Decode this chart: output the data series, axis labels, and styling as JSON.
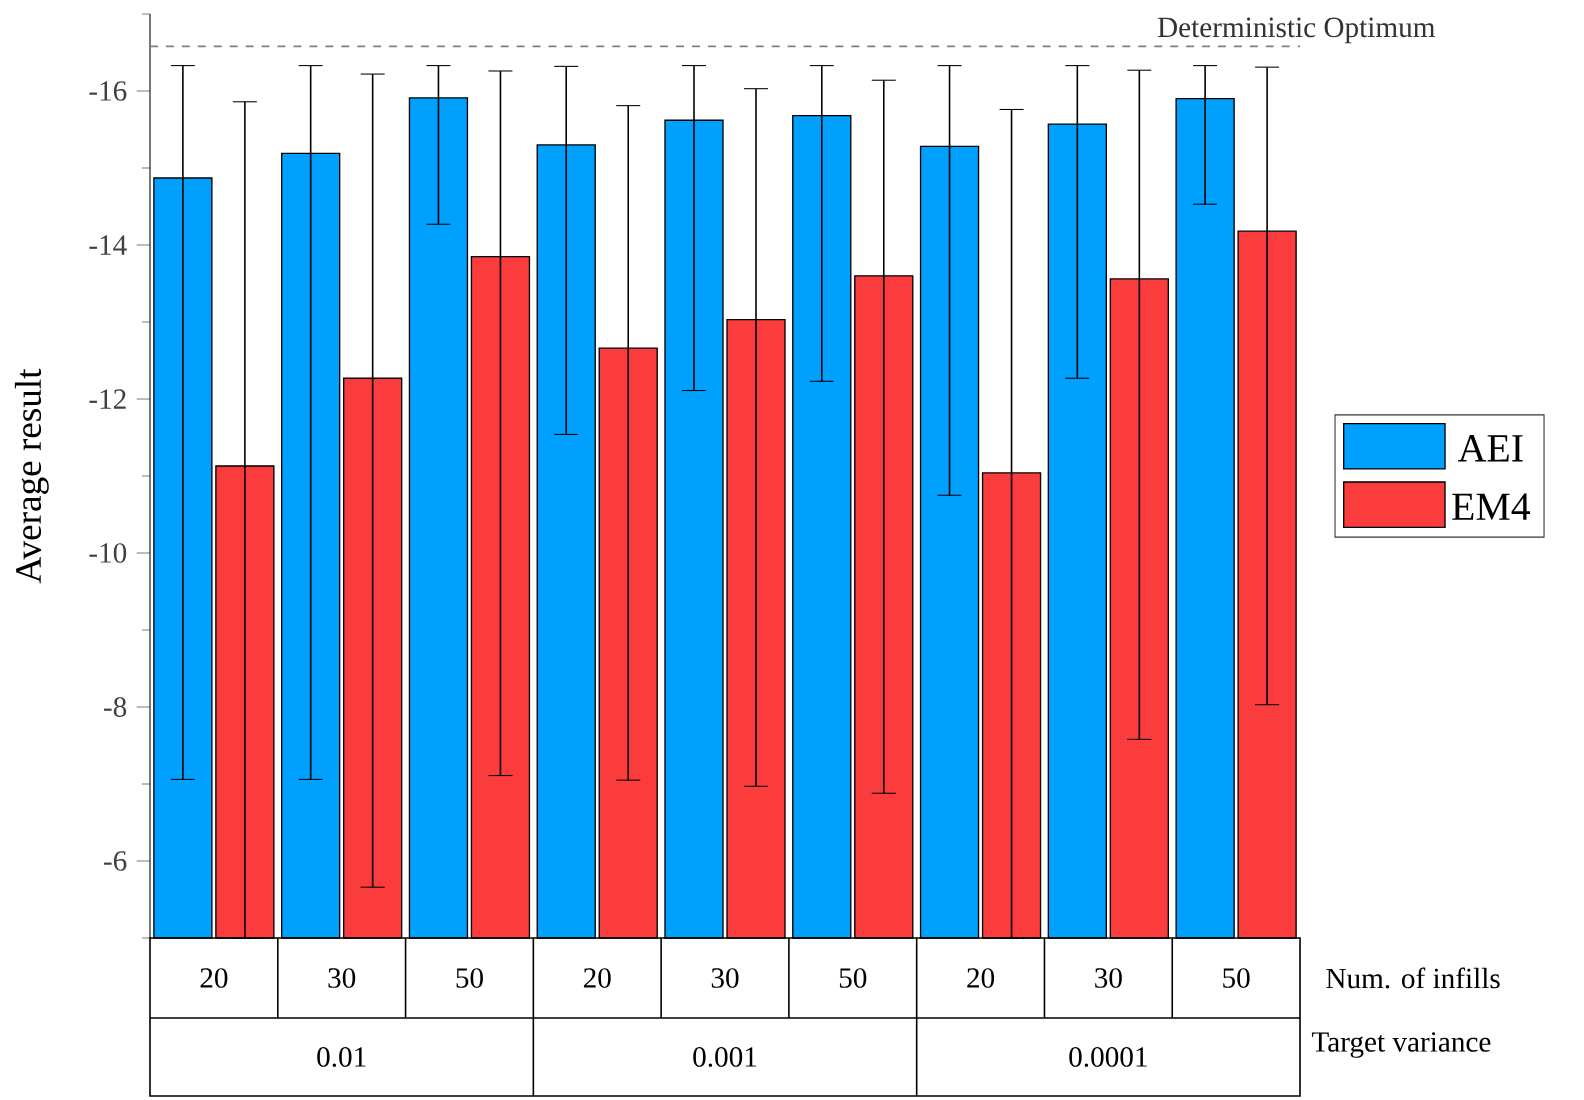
{
  "chart_data": {
    "type": "bar",
    "categories": [
      "20",
      "30",
      "50",
      "20",
      "30",
      "50",
      "20",
      "30",
      "50"
    ],
    "ylabel": "Average result",
    "ylim": [
      -5,
      -17
    ],
    "yticks": [
      {
        "value": -5,
        "label": null
      },
      -6,
      {
        "value": -7,
        "label": null
      },
      -8,
      {
        "value": -9,
        "label": null
      },
      -10,
      {
        "value": -11,
        "label": null
      },
      -12,
      {
        "value": -13,
        "label": null
      },
      -14,
      {
        "value": -15,
        "label": null
      },
      -16,
      {
        "value": -17,
        "label": null
      }
    ],
    "series": [
      {
        "name": "AEI",
        "color": "#00a0ff",
        "values": [
          -14.87,
          -15.19,
          -15.91,
          -15.3,
          -15.62,
          -15.68,
          -15.28,
          -15.57,
          -15.9
        ],
        "errors": [
          [
            -16.33,
            -7.06
          ],
          [
            -16.33,
            -7.06
          ],
          [
            -16.33,
            -14.27
          ],
          [
            -16.32,
            -11.54
          ],
          [
            -16.33,
            -12.11
          ],
          [
            -16.33,
            -12.23
          ],
          [
            -16.33,
            -10.75
          ],
          [
            -16.33,
            -12.27
          ],
          [
            -16.33,
            -14.53
          ]
        ]
      },
      {
        "name": "EM4",
        "color": "#fa3c3c",
        "values": [
          -11.13,
          -12.27,
          -13.85,
          -12.66,
          -13.03,
          -13.6,
          -11.04,
          -13.56,
          -14.18
        ],
        "errors": [
          [
            -15.86,
            -5
          ],
          [
            -16.22,
            -5.66
          ],
          [
            -16.26,
            -7.11
          ],
          [
            -15.81,
            -7.05
          ],
          [
            -16.03,
            -6.97
          ],
          [
            -16.14,
            -6.88
          ],
          [
            -15.76,
            -5
          ],
          [
            -16.27,
            -7.58
          ],
          [
            -16.31,
            -8.03
          ]
        ]
      }
    ],
    "ref_lines": [
      {
        "axis": "y",
        "value": -16.58,
        "label": "Deterministic Optimum",
        "color": "#808080",
        "line_style": "dashed"
      }
    ],
    "annotations": [
      "Num. of infills",
      "0.01",
      "0.001",
      "0.0001",
      "Target variance"
    ],
    "legend": "right",
    "grid": false
  }
}
